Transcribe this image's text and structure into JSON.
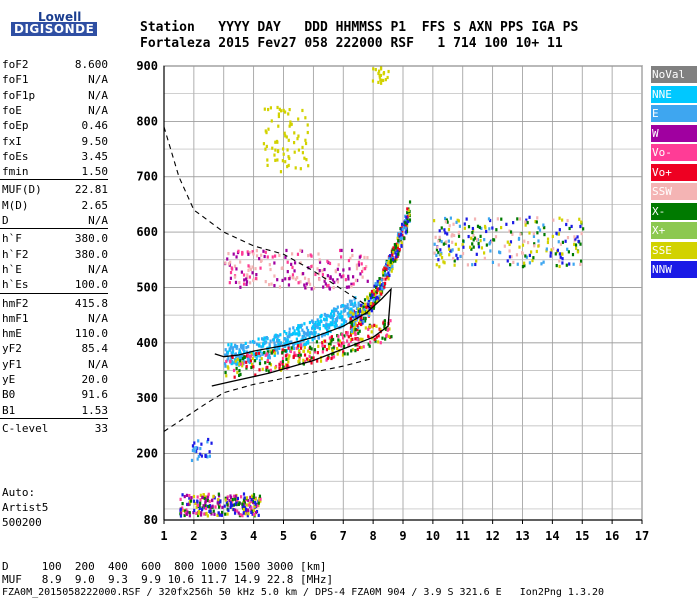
{
  "logo": {
    "line1": "Lowell",
    "line2": "DIGISONDE"
  },
  "header": {
    "labels": "Station   YYYY DAY   DDD HHMMSS P1  FFS S AXN PPS IGA PS",
    "values": "Fortaleza 2015 Fev27 058 222000 RSF   1 714 100 10+ 11"
  },
  "params": [
    {
      "name": "foF2",
      "value": "8.600"
    },
    {
      "name": "foF1",
      "value": "N/A"
    },
    {
      "name": "foF1p",
      "value": "N/A"
    },
    {
      "name": "foE",
      "value": "N/A"
    },
    {
      "name": "foEp",
      "value": "0.46"
    },
    {
      "name": "fxI",
      "value": "9.50"
    },
    {
      "name": "foEs",
      "value": "3.45"
    },
    {
      "name": "fmin",
      "value": "1.50"
    },
    {
      "name": "MUF(D)",
      "value": "22.81"
    },
    {
      "name": "M(D)",
      "value": "2.65"
    },
    {
      "name": "D",
      "value": "N/A"
    },
    {
      "name": "h`F",
      "value": "380.0"
    },
    {
      "name": "h`F2",
      "value": "380.0"
    },
    {
      "name": "h`E",
      "value": "N/A"
    },
    {
      "name": "h`Es",
      "value": "100.0"
    },
    {
      "name": "hmF2",
      "value": "415.8"
    },
    {
      "name": "hmF1",
      "value": "N/A"
    },
    {
      "name": "hmE",
      "value": "110.0"
    },
    {
      "name": "yF2",
      "value": "85.4"
    },
    {
      "name": "yF1",
      "value": "N/A"
    },
    {
      "name": "yE",
      "value": "20.0"
    },
    {
      "name": "B0",
      "value": "91.6"
    },
    {
      "name": "B1",
      "value": "1.53"
    },
    {
      "name": "C-level",
      "value": "33"
    }
  ],
  "side": {
    "auto": "Auto:",
    "artist": "Artist5",
    "code": "500200"
  },
  "footer": {
    "d_row": "D     100  200  400  600  800 1000 1500 3000 [km]",
    "muf_row": "MUF   8.9  9.0  9.3  9.9 10.6 11.7 14.9 22.8 [MHz]",
    "file_row": "FZA0M_2015058222000.RSF / 320fx256h 50 kHz 5.0 km / DPS-4 FZA0M 904 / 3.9 S 321.6 E   Ion2Png 1.3.20"
  },
  "legend": [
    {
      "label": "NoVal",
      "color": "#808080"
    },
    {
      "label": "NNE",
      "color": "#00c8ff"
    },
    {
      "label": "E",
      "color": "#3ea6f0"
    },
    {
      "label": "W",
      "color": "#a000a0"
    },
    {
      "label": "Vo-",
      "color": "#ff3c96"
    },
    {
      "label": "Vo+",
      "color": "#ee0022"
    },
    {
      "label": "SSW",
      "color": "#f4b4b4"
    },
    {
      "label": "X-",
      "color": "#007a00"
    },
    {
      "label": "X+",
      "color": "#8cc850"
    },
    {
      "label": "SSE",
      "color": "#d2d200"
    },
    {
      "label": "NNW",
      "color": "#1a1ae6"
    }
  ],
  "chart_data": {
    "type": "scatter",
    "xlim": [
      1,
      17
    ],
    "ylim": [
      80,
      900
    ],
    "xticks": [
      1,
      2,
      3,
      4,
      5,
      6,
      7,
      8,
      9,
      10,
      11,
      12,
      13,
      14,
      15,
      16,
      17
    ],
    "yticks": [
      80,
      200,
      300,
      400,
      500,
      600,
      700,
      800,
      900
    ],
    "grid": true,
    "legend_placement": "right",
    "clusters": [
      {
        "name": "Es",
        "fmin": 1.5,
        "fmax": 4.2,
        "hmin": 90,
        "hmax": 130,
        "colors": [
          "#a000a0",
          "#ff3c96",
          "#1a1ae6",
          "#d2d200",
          "#007a00"
        ],
        "n": 260
      },
      {
        "name": "spread low",
        "fmin": 1.9,
        "fmax": 2.6,
        "hmin": 190,
        "hmax": 230,
        "colors": [
          "#3ea6f0",
          "#1a1ae6"
        ],
        "n": 25
      },
      {
        "name": "E-echo",
        "fmin": 3.0,
        "fmax": 7.5,
        "hmin": 380,
        "hmax": 470,
        "colors": [
          "#3ea6f0",
          "#00c8ff"
        ],
        "n": 420
      },
      {
        "name": "F trace",
        "fmin": 3.0,
        "fmax": 8.6,
        "hmin": 360,
        "hmax": 430,
        "colors": [
          "#ee0022",
          "#d2d200",
          "#007a00",
          "#ff3c96"
        ],
        "n": 300
      },
      {
        "name": "W cloud",
        "fmin": 3.0,
        "fmax": 7.8,
        "hmin": 500,
        "hmax": 570,
        "colors": [
          "#a000a0",
          "#ff3c96",
          "#f4b4b4"
        ],
        "n": 200
      },
      {
        "name": "F rise",
        "fmin": 7.2,
        "fmax": 9.2,
        "hmin": 440,
        "hmax": 640,
        "colors": [
          "#3ea6f0",
          "#ee0022",
          "#d2d200",
          "#1a1ae6",
          "#007a00"
        ],
        "n": 380
      },
      {
        "name": "spread F",
        "fmin": 10.0,
        "fmax": 15.0,
        "hmin": 540,
        "hmax": 630,
        "colors": [
          "#1a1ae6",
          "#f4b4b4",
          "#3ea6f0",
          "#d2d200",
          "#007a00"
        ],
        "n": 260
      },
      {
        "name": "2nd hop",
        "fmin": 4.3,
        "fmax": 5.8,
        "hmin": 710,
        "hmax": 830,
        "colors": [
          "#d2d200"
        ],
        "n": 70
      },
      {
        "name": "top",
        "fmin": 7.9,
        "fmax": 8.5,
        "hmin": 870,
        "hmax": 900,
        "colors": [
          "#d2d200"
        ],
        "n": 20
      }
    ],
    "profile_solid": [
      [
        2.7,
        380
      ],
      [
        3.0,
        375
      ],
      [
        3.5,
        378
      ],
      [
        4.0,
        385
      ],
      [
        5.0,
        395
      ],
      [
        6.0,
        410
      ],
      [
        7.0,
        430
      ],
      [
        7.8,
        455
      ],
      [
        8.3,
        480
      ],
      [
        8.6,
        497
      ],
      [
        8.5,
        430
      ],
      [
        8.0,
        410
      ],
      [
        6.0,
        368
      ],
      [
        4.5,
        345
      ],
      [
        3.0,
        327
      ],
      [
        2.6,
        322
      ]
    ],
    "profile_dashed_upper": [
      [
        1.0,
        790
      ],
      [
        1.5,
        700
      ],
      [
        2.0,
        640
      ],
      [
        3.0,
        600
      ],
      [
        4.0,
        575
      ],
      [
        5.0,
        560
      ],
      [
        6.0,
        530
      ],
      [
        7.0,
        495
      ],
      [
        8.0,
        460
      ]
    ],
    "profile_dashed_lower": [
      [
        1.0,
        240
      ],
      [
        1.7,
        265
      ],
      [
        2.4,
        290
      ],
      [
        3.0,
        310
      ],
      [
        4.0,
        325
      ],
      [
        5.0,
        336
      ],
      [
        6.0,
        347
      ],
      [
        7.0,
        358
      ],
      [
        8.0,
        372
      ]
    ]
  }
}
